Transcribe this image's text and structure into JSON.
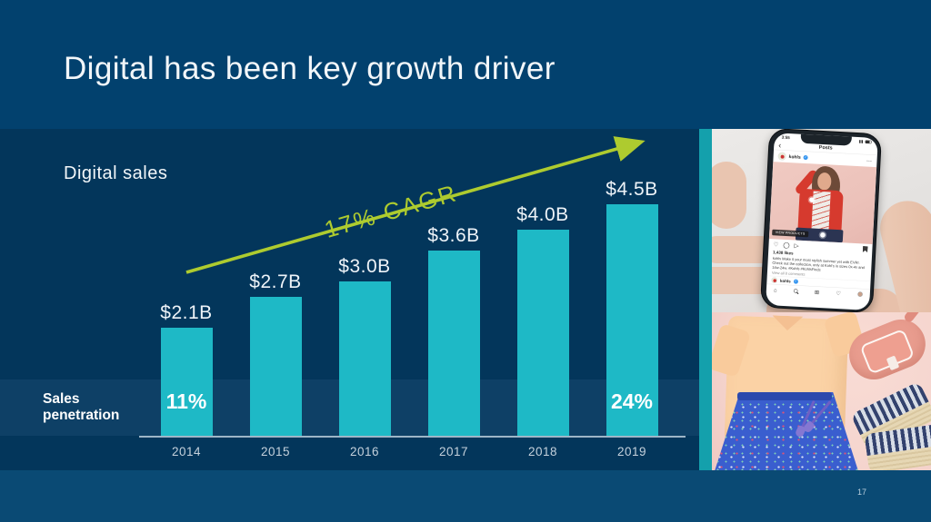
{
  "slide": {
    "title": "Digital has been key growth driver",
    "page_number": "17"
  },
  "chart": {
    "label": "Digital sales",
    "penetration_label": "Sales penetration",
    "annotation": "17% CAGR"
  },
  "chart_data": {
    "type": "bar",
    "title": "Digital sales",
    "unit": "USD billions",
    "categories": [
      "2014",
      "2015",
      "2016",
      "2017",
      "2018",
      "2019"
    ],
    "values": [
      2.1,
      2.7,
      3.0,
      3.6,
      4.0,
      4.5
    ],
    "value_labels": [
      "$2.1B",
      "$2.7B",
      "$3.0B",
      "$3.6B",
      "$4.0B",
      "$4.5B"
    ],
    "annotation": "17% CAGR",
    "penetration_row_label": "Sales penetration",
    "penetration": [
      "11%",
      "",
      "",
      "",
      "",
      "24%"
    ],
    "xlabel": "",
    "ylabel": "",
    "ylim": [
      0,
      4.5
    ],
    "grid": false,
    "legend": false
  },
  "colors": {
    "band_blue": "#02416e",
    "footer_blue": "#0a4a74",
    "chart_bg": "#03365b",
    "stripe_bg": "#0e4066",
    "bar_teal": "#1eb9c6",
    "strip_teal": "#14a0ac",
    "arrow_green": "#aecb2f",
    "text_white": "#f2f6f9"
  },
  "photos": {
    "instagram": {
      "status_time": "3:55",
      "nav_title": "Posts",
      "username": "kohls",
      "view_products_label": "VIEW PRODUCTS",
      "likes": "1,438 likes",
      "caption": "kohls Make it your most stylish summer yet with EVRI. Check out the collection, only at Kohl's in sizes 0x-4x and 14w-24w. #Kohls #KohlsFinds",
      "comments_link": "View all 8 comments",
      "username_second": "kohls"
    }
  }
}
